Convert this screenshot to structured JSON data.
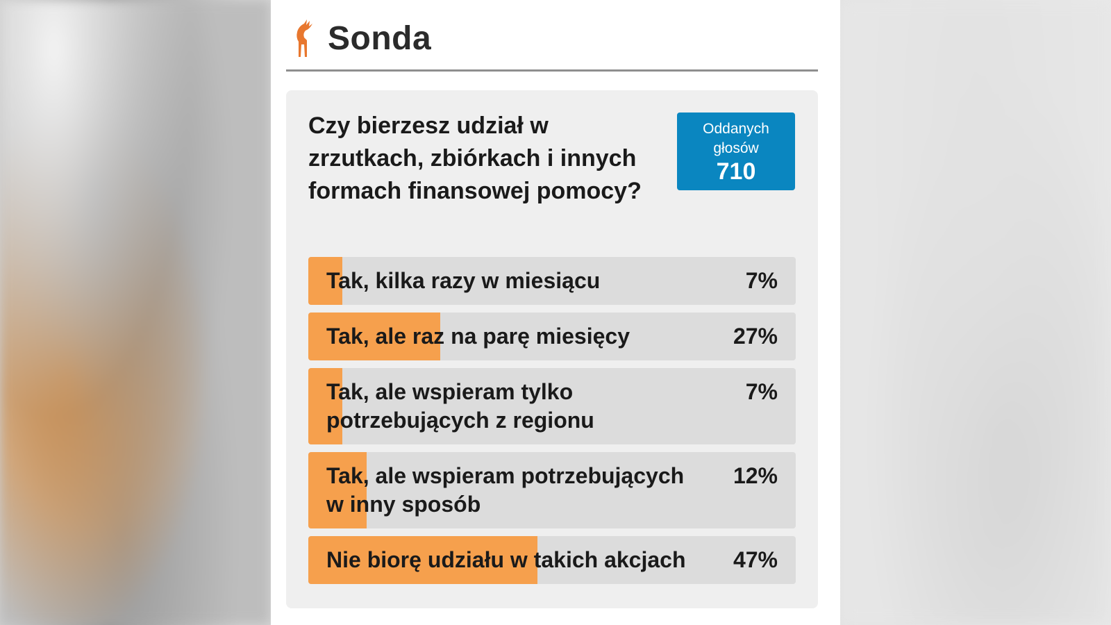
{
  "header": {
    "title": "Sonda",
    "logo_icon": "deer-icon"
  },
  "poll": {
    "question": "Czy bierzesz udział w zrzutkach, zbiórkach i innych formach finansowej pomocy?",
    "votes_label": "Oddanych głosów",
    "votes_count": "710",
    "answers": [
      {
        "label": "Tak, kilka razy w miesiącu",
        "percent_text": "7%",
        "percent": 7
      },
      {
        "label": "Tak, ale raz na parę miesięcy",
        "percent_text": "27%",
        "percent": 27
      },
      {
        "label": "Tak, ale wspieram tylko potrzebujących z regionu",
        "percent_text": "7%",
        "percent": 7
      },
      {
        "label": "Tak, ale wspieram potrzebujących w inny sposób",
        "percent_text": "12%",
        "percent": 12
      },
      {
        "label": "Nie biorę udziału w takich akcjach",
        "percent_text": "47%",
        "percent": 47
      }
    ]
  },
  "colors": {
    "accent_orange": "#f6a04d",
    "votes_blue": "#0a86c0",
    "bar_track": "#dcdcdc"
  }
}
